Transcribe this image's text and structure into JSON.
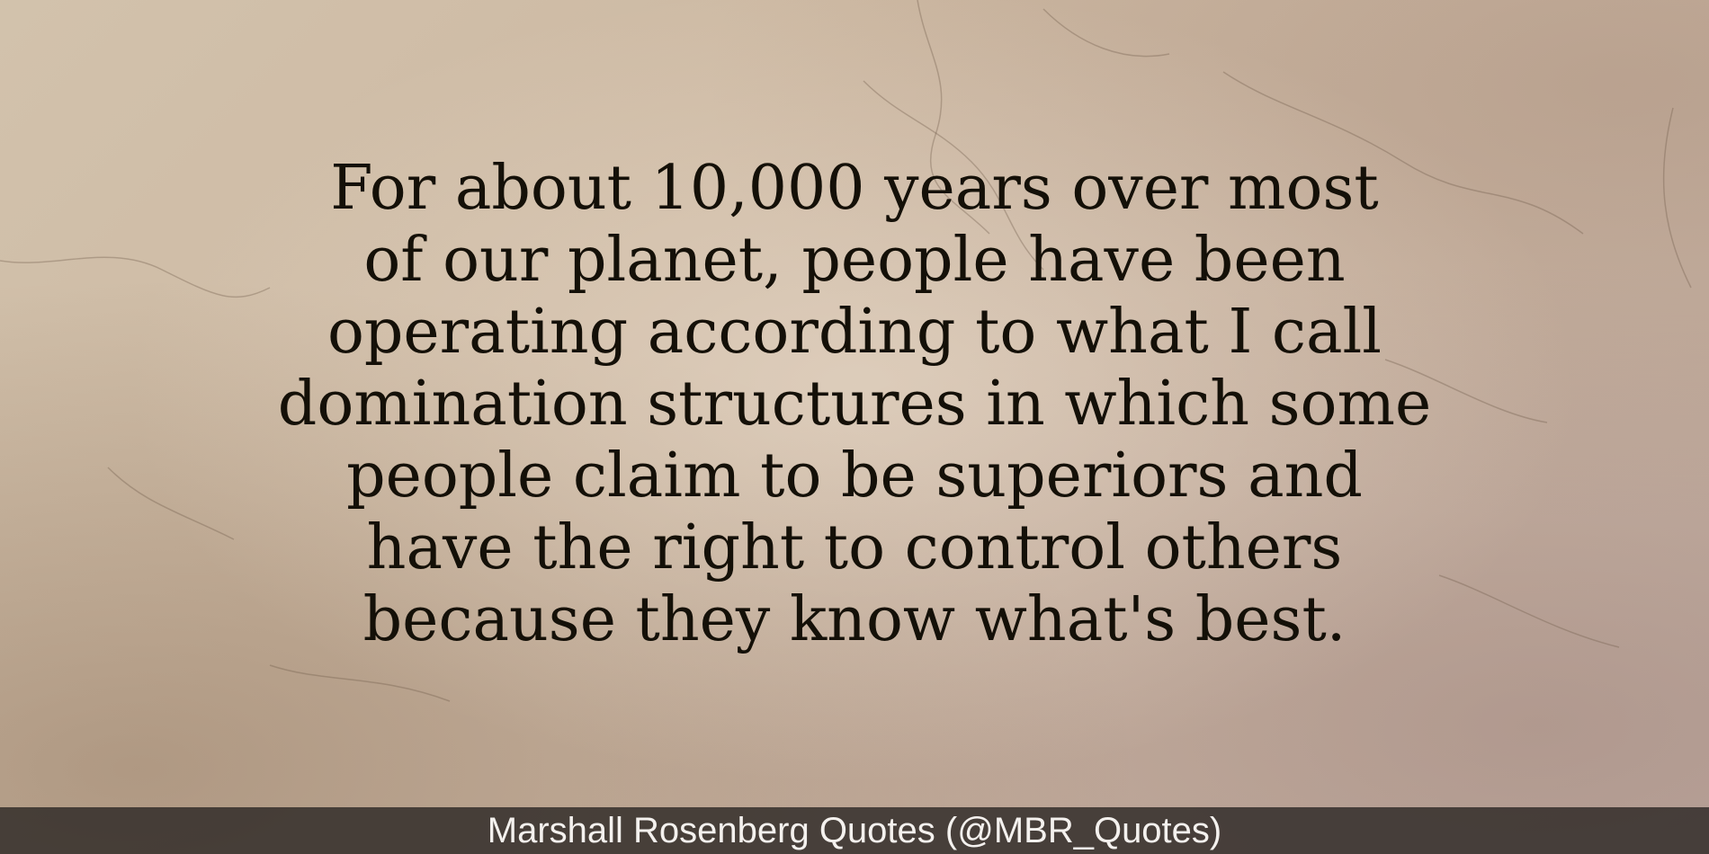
{
  "quote": {
    "lines": [
      "For about 10,000 years over most",
      "of our planet, people have been",
      "operating according to what I call",
      "domination structures in which some",
      "people claim to be superiors and",
      "have the right to control others",
      "because they know what's best."
    ]
  },
  "footer": {
    "attribution": "Marshall Rosenberg Quotes (@MBR_Quotes)"
  },
  "colors": {
    "text": "#141008",
    "footer_bar": "#2d2826",
    "footer_text": "#f4f1ee"
  }
}
